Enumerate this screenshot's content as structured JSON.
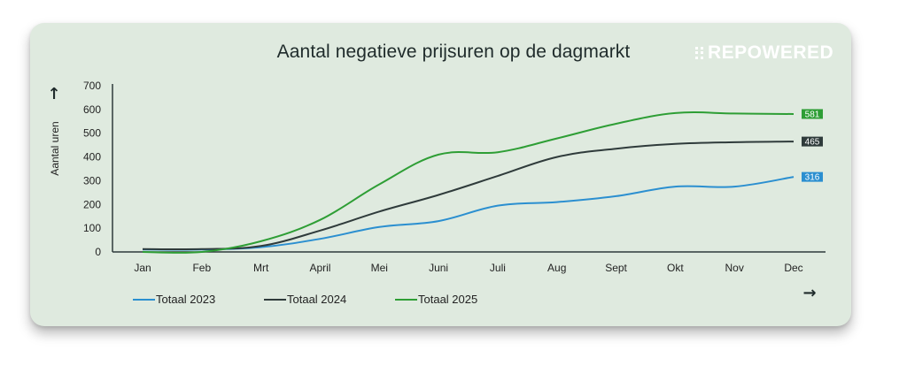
{
  "chart_data": {
    "type": "line",
    "title": "Aantal negatieve prijsuren op de dagmarkt",
    "ylabel": "Aantal uren",
    "xlabel": "",
    "categories": [
      "Jan",
      "Feb",
      "Mrt",
      "April",
      "Mei",
      "Juni",
      "Juli",
      "Aug",
      "Sept",
      "Okt",
      "Nov",
      "Dec"
    ],
    "ylim": [
      0,
      700
    ],
    "yticks": [
      0,
      100,
      200,
      300,
      400,
      500,
      600,
      700
    ],
    "grid": false,
    "legend_position": "bottom-left",
    "series": [
      {
        "name": "Totaal 2023",
        "color": "#2b8fd0",
        "values": [
          10,
          10,
          20,
          55,
          105,
          130,
          195,
          210,
          235,
          275,
          275,
          316
        ],
        "end_label": "316"
      },
      {
        "name": "Totaal 2024",
        "color": "#2f3b3b",
        "values": [
          12,
          12,
          25,
          90,
          170,
          240,
          320,
          400,
          435,
          455,
          462,
          465
        ],
        "end_label": "465"
      },
      {
        "name": "Totaal 2025",
        "color": "#2e9e35",
        "values": [
          0,
          0,
          45,
          135,
          285,
          410,
          420,
          478,
          540,
          585,
          583,
          581
        ],
        "end_label": "581"
      }
    ]
  },
  "brand": {
    "logo_text": "REPOWERED",
    "logo_icon": "grid-dots-icon"
  },
  "axis_arrows": {
    "y": "↑",
    "x": "→"
  }
}
